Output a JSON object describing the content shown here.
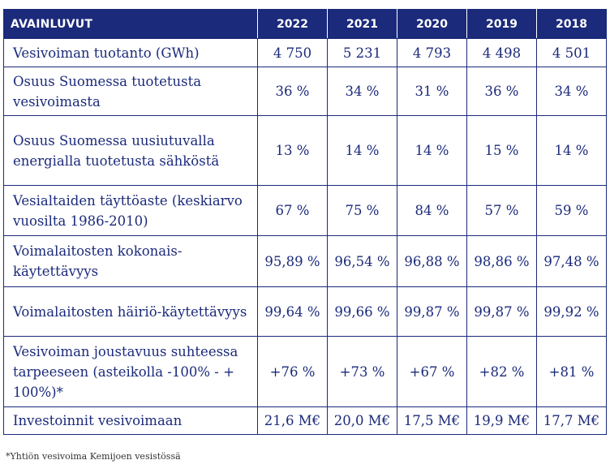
{
  "table": {
    "header": {
      "label": "AVAINLUVUT",
      "years": [
        "2022",
        "2021",
        "2020",
        "2019",
        "2018"
      ]
    },
    "rows": [
      {
        "label": "Vesivoiman tuotanto (GWh)",
        "values": [
          "4 750",
          "5 231",
          "4 793",
          "4 498",
          "4 501"
        ]
      },
      {
        "label": "Osuus Suomessa tuotetusta vesivoimasta",
        "values": [
          "36 %",
          "34 %",
          "31 %",
          "36 %",
          "34 %"
        ]
      },
      {
        "label": "Osuus Suomessa uusiutuvalla energialla tuotetusta sähköstä",
        "values": [
          "13 %",
          "14 %",
          "14 %",
          "15 %",
          "14 %"
        ]
      },
      {
        "label": "Vesialtaiden täyttöaste (keskiarvo vuosilta 1986-2010)",
        "values": [
          "67 %",
          "75 %",
          "84 %",
          "57 %",
          "59 %"
        ]
      },
      {
        "label": "Voimalaitosten kokonais-käytettävyys",
        "values": [
          "95,89 %",
          "96,54 %",
          "96,88 %",
          "98,86 %",
          "97,48 %"
        ]
      },
      {
        "label": "Voimalaitosten häiriö-käytettävyys",
        "values": [
          "99,64 %",
          "99,66 %",
          "99,87 %",
          "99,87 %",
          "99,92 %"
        ]
      },
      {
        "label": "Vesivoiman joustavuus suhteessa tarpeeseen (asteikolla -100% - + 100%)*",
        "values": [
          "+76 %",
          "+73 %",
          "+67 %",
          "+82 %",
          "+81 %"
        ]
      },
      {
        "label": "Investoinnit vesivoimaan",
        "values": [
          "21,6 M€",
          "20,0 M€",
          "17,5 M€",
          "19,9 M€",
          "17,7 M€"
        ]
      }
    ]
  },
  "footnote": "*Yhtiön vesivoima Kemijoen vesistössä"
}
